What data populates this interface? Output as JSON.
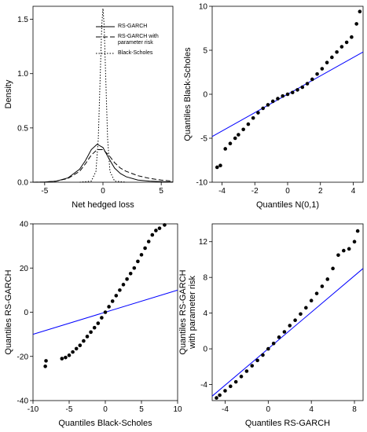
{
  "chart_data": [
    {
      "type": "line",
      "xlabel": "Net hedged loss",
      "ylabel": [
        "Density"
      ],
      "xlim": [
        -6,
        6
      ],
      "ylim": [
        0,
        1.62
      ],
      "xticks": [
        -5,
        0,
        5
      ],
      "yticks": [
        {
          "value": 0,
          "label": "0.0"
        },
        {
          "value": 0.5,
          "label": "0.5"
        },
        {
          "value": 1,
          "label": "1.0"
        },
        {
          "value": 1.5,
          "label": "1.5"
        }
      ],
      "legend": "top-right",
      "series": [
        {
          "name": "RS-GARCH",
          "color": "#000000",
          "dash": "solid",
          "x": [
            -6,
            -5,
            -4,
            -3,
            -2,
            -1.5,
            -1,
            -0.5,
            0,
            0.5,
            1,
            1.5,
            2,
            3,
            4,
            5,
            6
          ],
          "values": [
            0,
            0.002,
            0.01,
            0.04,
            0.12,
            0.2,
            0.3,
            0.35,
            0.32,
            0.22,
            0.13,
            0.08,
            0.05,
            0.02,
            0.01,
            0.005,
            0.002
          ]
        },
        {
          "name": "RS-GARCH with parameter risk",
          "color": "#000000",
          "dash": "dashed",
          "x": [
            -6,
            -5,
            -4,
            -3,
            -2,
            -1.5,
            -1,
            -0.5,
            0,
            0.5,
            1,
            1.5,
            2,
            3,
            4,
            5,
            6
          ],
          "values": [
            0,
            0.002,
            0.01,
            0.035,
            0.1,
            0.17,
            0.25,
            0.3,
            0.3,
            0.25,
            0.18,
            0.13,
            0.1,
            0.06,
            0.035,
            0.02,
            0.01
          ]
        },
        {
          "name": "Black-Scholes",
          "color": "#000000",
          "dash": "dotted",
          "x": [
            -2,
            -1,
            -0.6,
            -0.4,
            -0.2,
            -0.1,
            0,
            0.1,
            0.2,
            0.4,
            0.6,
            1,
            2
          ],
          "values": [
            0,
            0.01,
            0.1,
            0.4,
            1.1,
            1.45,
            1.6,
            1.45,
            1.1,
            0.4,
            0.1,
            0.01,
            0
          ]
        }
      ]
    },
    {
      "type": "scatter",
      "xlabel": "Quantiles N(0,1)",
      "ylabel": [
        "Quantiles Black-Scholes"
      ],
      "xlim": [
        -4.6,
        4.6
      ],
      "ylim": [
        -10,
        10
      ],
      "xticks": [
        -4,
        -2,
        0,
        2,
        4
      ],
      "yticks": [
        -10,
        -5,
        0,
        5,
        10
      ],
      "series": [
        {
          "color": "#000000",
          "x": [
            -4.3,
            -4.1,
            -3.8,
            -3.5,
            -3.2,
            -3,
            -2.7,
            -2.4,
            -2.1,
            -1.8,
            -1.5,
            -1.2,
            -0.9,
            -0.6,
            -0.3,
            0,
            0.3,
            0.6,
            0.9,
            1.2,
            1.5,
            1.8,
            2.1,
            2.4,
            2.7,
            3,
            3.3,
            3.6,
            3.9,
            4.2,
            4.4
          ],
          "values": [
            -8.3,
            -8.1,
            -6.2,
            -5.6,
            -5,
            -4.6,
            -4,
            -3.4,
            -2.7,
            -2.1,
            -1.6,
            -1.2,
            -0.8,
            -0.5,
            -0.2,
            0,
            0.2,
            0.5,
            0.8,
            1.2,
            1.7,
            2.3,
            2.9,
            3.6,
            4.2,
            4.8,
            5.4,
            5.9,
            6.5,
            8,
            9.4
          ]
        }
      ],
      "reference_line": {
        "color": "#0000ff",
        "x": [
          -4.6,
          4.6
        ],
        "values": [
          -4.8,
          4.8
        ]
      }
    },
    {
      "type": "scatter",
      "xlabel": "Quantiles Black-Scholes",
      "ylabel": [
        "Quantiles RS-GARCH"
      ],
      "xlim": [
        -10,
        10
      ],
      "ylim": [
        -40,
        40
      ],
      "xticks": [
        -10,
        -5,
        0,
        5,
        10
      ],
      "yticks": [
        -40,
        -20,
        0,
        20,
        40
      ],
      "series": [
        {
          "color": "#000000",
          "x": [
            -8.3,
            -8.2,
            -6,
            -5.5,
            -5,
            -4.5,
            -4,
            -3.5,
            -3,
            -2.5,
            -2,
            -1.5,
            -1,
            -0.5,
            0,
            0.5,
            1,
            1.5,
            2,
            2.5,
            3,
            3.5,
            4,
            4.5,
            5,
            5.5,
            6,
            6.5,
            7,
            7.5,
            8.2
          ],
          "values": [
            -24.5,
            -22,
            -21,
            -20.5,
            -19.5,
            -18,
            -16.5,
            -15,
            -13,
            -11,
            -9,
            -7,
            -5,
            -2.5,
            0,
            2.5,
            5,
            7.5,
            10,
            12.5,
            15,
            17.5,
            20,
            23,
            26,
            29,
            32,
            35,
            37,
            38,
            39.5
          ]
        }
      ],
      "reference_line": {
        "color": "#0000ff",
        "x": [
          -10,
          10
        ],
        "values": [
          -10,
          10
        ]
      }
    },
    {
      "type": "scatter",
      "xlabel": "Quantiles RS-GARCH",
      "ylabel": [
        "Quantiles RS-GARCH",
        "with parameter risk"
      ],
      "xlim": [
        -5.2,
        8.8
      ],
      "ylim": [
        -5.8,
        14
      ],
      "xticks": [
        -4,
        0,
        4,
        8
      ],
      "yticks": [
        -4,
        0,
        4,
        8,
        12
      ],
      "series": [
        {
          "color": "#000000",
          "x": [
            -4.8,
            -4.5,
            -4,
            -3.5,
            -3,
            -2.5,
            -2,
            -1.5,
            -1,
            -0.5,
            0,
            0.5,
            1,
            1.5,
            2,
            2.5,
            3,
            3.5,
            4,
            4.5,
            5,
            5.5,
            6,
            6.5,
            7,
            7.5,
            8,
            8.3
          ],
          "values": [
            -5.5,
            -5.2,
            -4.7,
            -4.2,
            -3.7,
            -3.1,
            -2.5,
            -1.9,
            -1.3,
            -0.7,
            0,
            0.6,
            1.3,
            1.9,
            2.6,
            3.2,
            3.9,
            4.6,
            5.4,
            6.2,
            7,
            7.8,
            9,
            10.5,
            11,
            11.2,
            12,
            13.2
          ]
        }
      ],
      "reference_line": {
        "color": "#0000ff",
        "x": [
          -5.2,
          8.8
        ],
        "values": [
          -5.3,
          9
        ]
      }
    }
  ]
}
